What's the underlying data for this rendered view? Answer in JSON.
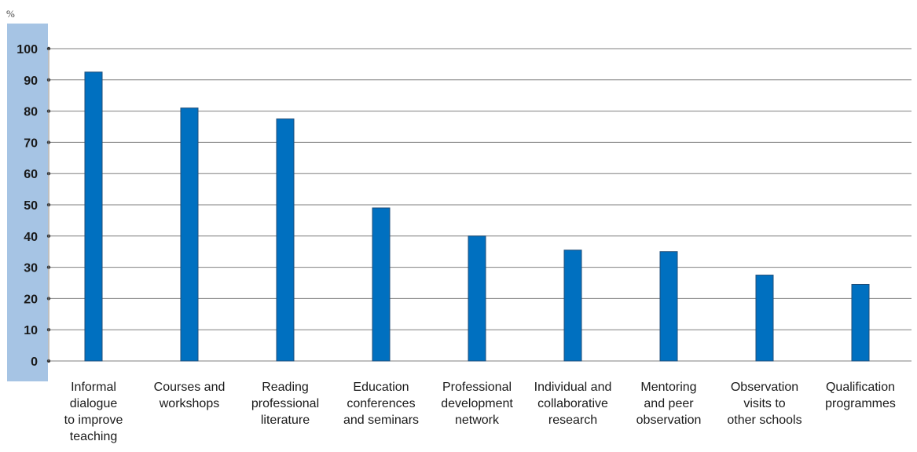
{
  "chart_data": {
    "type": "bar",
    "ylabel": "%",
    "ylim": [
      0,
      100
    ],
    "yticks": [
      "0",
      "10",
      "20",
      "30",
      "40",
      "50",
      "60",
      "70",
      "80",
      "90",
      "100"
    ],
    "grid": true,
    "categories": [
      [
        "Informal",
        "dialogue",
        "to improve",
        "teaching"
      ],
      [
        "Courses and",
        "workshops"
      ],
      [
        "Reading",
        "professional",
        "literature"
      ],
      [
        "Education",
        "conferences",
        "and seminars"
      ],
      [
        "Professional",
        "development",
        "network"
      ],
      [
        "Individual and",
        "collaborative",
        "research"
      ],
      [
        "Mentoring",
        "and peer",
        "observation"
      ],
      [
        "Observation",
        "visits to",
        "other schools"
      ],
      [
        "Qualification",
        "programmes"
      ]
    ],
    "values": [
      92.5,
      81,
      77.5,
      49,
      40,
      35.5,
      35,
      27.5,
      24.5
    ],
    "colors": {
      "bar": "#0070c0",
      "bar_edge": "#1f4e79",
      "axis_band": "#a6c4e4",
      "grid": "#7f7f7f"
    }
  }
}
